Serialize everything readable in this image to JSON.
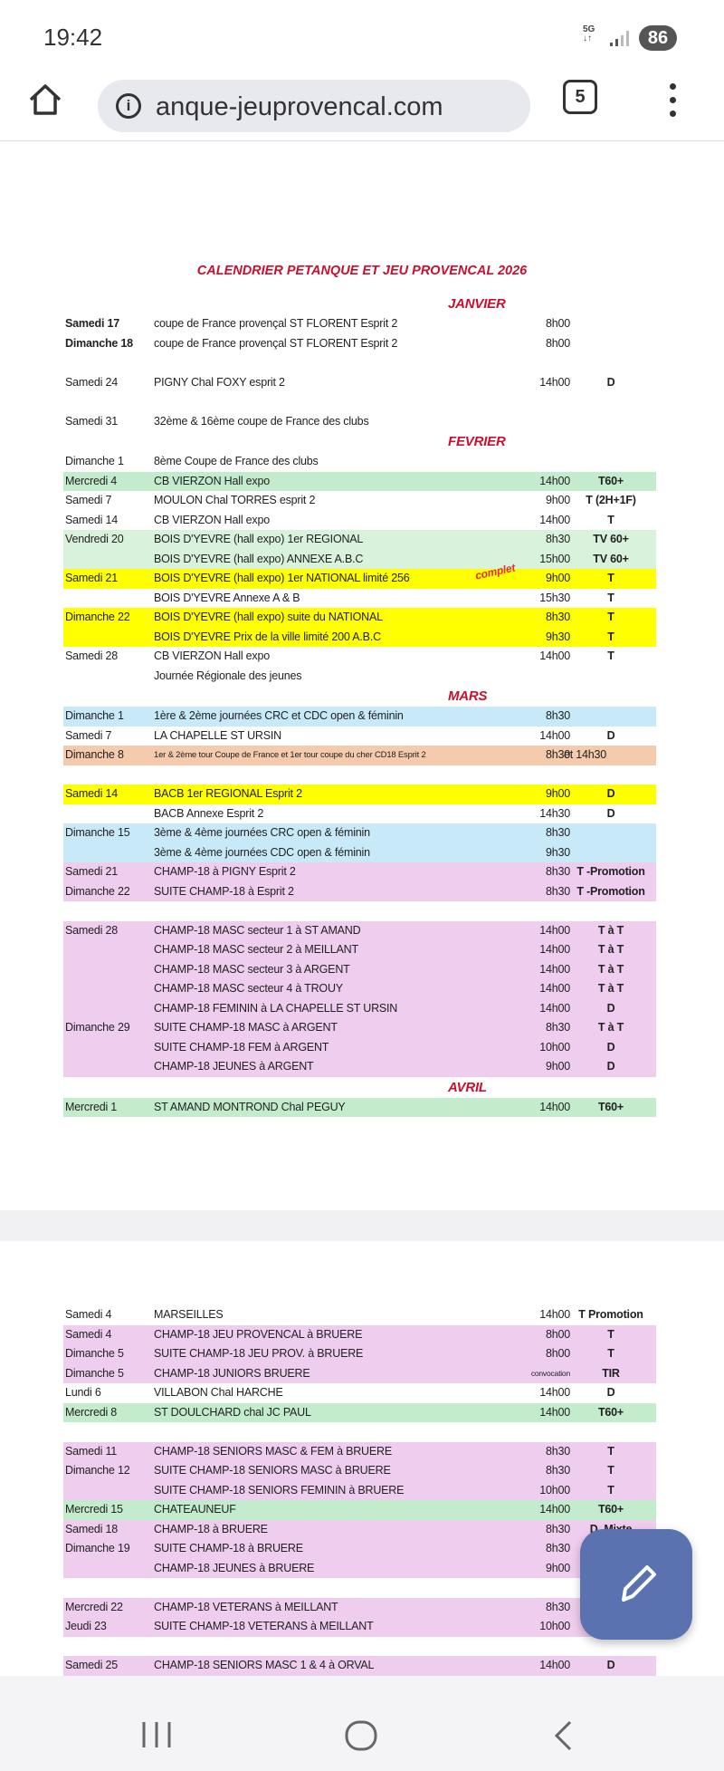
{
  "status_bar": {
    "time": "19:42",
    "network": "5G",
    "battery": "86"
  },
  "browser": {
    "url": "anque-jeuprovencal.com",
    "tab_count": "5"
  },
  "document": {
    "title": "CALENDRIER PETANQUE ET JEU PROVENCAL 2026",
    "page1": [
      {
        "month": "JANVIER",
        "groups": [
          [
            {
              "date": "Samedi 17",
              "bold": true,
              "event": "coupe de France provençal ST FLORENT Esprit 2",
              "time": "8h00"
            },
            {
              "date": "Dimanche 18",
              "bold": true,
              "event": "coupe de France provençal ST FLORENT Esprit 2",
              "time": "8h00"
            }
          ],
          [
            {
              "date": "Samedi 24",
              "event": "PIGNY Chal FOXY esprit 2",
              "time": "14h00",
              "cat": "D"
            }
          ],
          [
            {
              "date": "Samedi 31",
              "event": "32ème & 16ème coupe de France des clubs"
            }
          ]
        ]
      },
      {
        "month": "FEVRIER",
        "groups": [
          [
            {
              "date": "Dimanche 1",
              "event": "8ème Coupe de France des clubs"
            },
            {
              "date": "Mercredi 4",
              "event": "CB VIERZON  Hall expo",
              "time": "14h00",
              "cat": "T60+",
              "color": "#c3eccc"
            },
            {
              "date": "Samedi 7",
              "event": "MOULON Chal  TORRES esprit 2",
              "time": "9h00",
              "cat": "T (2H+1F)"
            },
            {
              "date": "Samedi 14",
              "event": "CB VIERZON  Hall expo",
              "time": "14h00",
              "cat": "T"
            },
            {
              "date": "Vendredi 20",
              "event": "BOIS D'YEVRE (hall expo)  1er REGIONAL",
              "time": "8h30",
              "cat": "TV 60+",
              "color": "#d9f2dc"
            },
            {
              "date": "",
              "event": "BOIS D'YEVRE (hall expo)  ANNEXE A.B.C",
              "time": "15h00",
              "cat": "TV 60+",
              "color": "#d9f2dc"
            },
            {
              "date": "Samedi 21",
              "event": "BOIS D'YEVRE (hall expo)    1er  NATIONAL limité 256",
              "tag": "complet",
              "time": "9h00",
              "cat": "T",
              "color": "#ffff00"
            },
            {
              "date": "",
              "event": "BOIS D'YEVRE Annexe A & B",
              "time": "15h30",
              "cat": "T"
            },
            {
              "date": "Dimanche 22",
              "event": "BOIS D'YEVRE (hall expo)     suite du NATIONAL",
              "time": "8h30",
              "cat": "T",
              "color": "#ffff00"
            },
            {
              "date": "",
              "event": "BOIS D'YEVRE Prix de la ville limité 200 A.B.C",
              "time": "9h30",
              "cat": "T",
              "color": "#ffff00"
            },
            {
              "date": "Samedi 28",
              "event": "CB VIERZON  Hall expo",
              "time": "14h00",
              "cat": "T"
            },
            {
              "date": "",
              "event": "Journée Régionale des jeunes"
            }
          ]
        ]
      },
      {
        "month": "MARS",
        "groups": [
          [
            {
              "date": "Dimanche 1",
              "event": "1ère & 2ème journées CRC et CDC open & féminin",
              "time": "8h30",
              "color": "#c8e9f7"
            },
            {
              "date": "Samedi 7",
              "event": "LA CHAPELLE ST URSIN",
              "time": "14h00",
              "cat": "D"
            },
            {
              "date": "Dimanche 8",
              "event": "1er & 2ème tour Coupe de France et 1er tour coupe du cher CD18 Esprit 2",
              "small": true,
              "time": "8h30",
              "cat": "et 14h30",
              "catPlain": true,
              "color": "#f6caad"
            }
          ],
          [
            {
              "date": "Samedi 14",
              "event": "BACB 1er REGIONAL Esprit 2",
              "time": "9h00",
              "cat": "D",
              "color": "#ffff00"
            },
            {
              "date": "",
              "event": "BACB Annexe Esprit 2",
              "time": "14h30",
              "cat": "D"
            },
            {
              "date": "Dimanche 15",
              "event": "3ème & 4ème journées CRC open & féminin",
              "time": "8h30",
              "color": "#c8e9f7"
            },
            {
              "date": "",
              "event": "3ème & 4ème journées CDC open & féminin",
              "time": "9h30",
              "color": "#c8e9f7"
            },
            {
              "date": "Samedi 21",
              "event": "CHAMP-18 à PIGNY  Esprit 2",
              "time": "8h30",
              "cat": "T -Promotion",
              "color": "#efcdee"
            },
            {
              "date": "Dimanche 22",
              "event": "SUITE CHAMP-18 à Esprit 2",
              "time": "8h30",
              "cat": "T -Promotion",
              "color": "#efcdee"
            }
          ],
          [
            {
              "date": "Samedi 28",
              "event": "CHAMP-18 MASC secteur 1 à ST AMAND",
              "time": "14h00",
              "cat": "T à T",
              "color": "#efcdee"
            },
            {
              "date": "",
              "event": "CHAMP-18 MASC secteur 2 à MEILLANT",
              "time": "14h00",
              "cat": "T à T",
              "color": "#efcdee"
            },
            {
              "date": "",
              "event": "CHAMP-18 MASC secteur 3 à ARGENT",
              "time": "14h00",
              "cat": "T à T",
              "color": "#efcdee"
            },
            {
              "date": "",
              "event": "CHAMP-18 MASC secteur 4 à TROUY",
              "time": "14h00",
              "cat": "T à T",
              "color": "#efcdee"
            },
            {
              "date": "",
              "event": "CHAMP-18 FEMININ à LA CHAPELLE ST URSIN",
              "time": "14h00",
              "cat": "D",
              "color": "#efcdee"
            },
            {
              "date": "Dimanche 29",
              "event": "SUITE CHAMP-18 MASC à ARGENT",
              "time": "8h30",
              "cat": "T à T",
              "color": "#efcdee"
            },
            {
              "date": "",
              "event": "SUITE CHAMP-18 FEM à ARGENT",
              "time": "10h00",
              "cat": "D",
              "color": "#efcdee"
            },
            {
              "date": "",
              "event": "CHAMP-18 JEUNES à ARGENT",
              "time": "9h00",
              "cat": "D",
              "color": "#efcdee"
            }
          ]
        ]
      },
      {
        "month": "AVRIL",
        "groups": [
          [
            {
              "date": "Mercredi 1",
              "event": "ST AMAND MONTROND Chal PEGUY",
              "time": "14h00",
              "cat": "T60+",
              "color": "#c3eccc"
            }
          ]
        ]
      }
    ],
    "page2": [
      [
        {
          "date": "Samedi 4",
          "event": "MARSEILLES",
          "time": "14h00",
          "cat": "T Promotion"
        },
        {
          "date": "Samedi 4",
          "event": "CHAMP-18 JEU PROVENCAL à BRUERE",
          "time": "8h00",
          "cat": "T",
          "color": "#efcdee"
        },
        {
          "date": "Dimanche 5",
          "event": "SUITE CHAMP-18 JEU PROV. à BRUERE",
          "time": "8h00",
          "cat": "T",
          "color": "#efcdee"
        },
        {
          "date": "Dimanche 5",
          "event": "CHAMP-18 JUNIORS BRUERE",
          "time": "convocation",
          "smallTime": true,
          "cat": "TIR",
          "color": "#efcdee"
        },
        {
          "date": "Lundi 6",
          "event": "VILLABON Chal HARCHE",
          "time": "14h00",
          "cat": "D"
        },
        {
          "date": "Mercredi 8",
          "event": "ST DOULCHARD chal JC PAUL",
          "time": "14h00",
          "cat": "T60+",
          "color": "#c3eccc"
        }
      ],
      [
        {
          "date": "Samedi 11",
          "event": "CHAMP-18 SENIORS  MASC & FEM à BRUERE",
          "time": "8h30",
          "cat": "T",
          "color": "#efcdee"
        },
        {
          "date": "Dimanche 12",
          "event": "SUITE CHAMP-18  SENIORS  MASC à BRUERE",
          "time": "8h30",
          "cat": "T",
          "color": "#efcdee"
        },
        {
          "date": "",
          "event": "SUITE CHAMP-18  SENIORS  FEMININ à BRUERE",
          "time": "10h00",
          "cat": "T",
          "color": "#efcdee"
        },
        {
          "date": "Mercredi 15",
          "event": "CHATEAUNEUF",
          "time": "14h00",
          "cat": "T60+",
          "color": "#c3eccc"
        },
        {
          "date": "Samedi 18",
          "event": "CHAMP-18 à BRUERE",
          "time": "8h30",
          "cat": "D_Mixte",
          "color": "#efcdee"
        },
        {
          "date": "Dimanche 19",
          "event": "SUITE CHAMP-18 à BRUERE",
          "time": "8h30",
          "color": "#efcdee"
        },
        {
          "date": "",
          "event": "CHAMP-18 JEUNES à BRUERE",
          "time": "9h00",
          "color": "#efcdee"
        }
      ],
      [
        {
          "date": "Mercredi 22",
          "event": "CHAMP-18 VETERANS à MEILLANT",
          "time": "8h30",
          "color": "#efcdee"
        },
        {
          "date": "Jeudi 23",
          "event": "SUITE CHAMP-18 VETERANS à MEILLANT",
          "time": "10h00",
          "color": "#efcdee"
        }
      ],
      [
        {
          "date": "Samedi 25",
          "event": "CHAMP-18 SENIORS MASC 1 & 4 à ORVAL",
          "time": "14h00",
          "cat": "D",
          "color": "#efcdee"
        }
      ]
    ]
  },
  "fab": {
    "icon": "pencil-icon",
    "color": "#5a72b0"
  },
  "nav": {
    "icons": [
      "recent-apps-icon",
      "home-icon",
      "back-icon"
    ]
  }
}
